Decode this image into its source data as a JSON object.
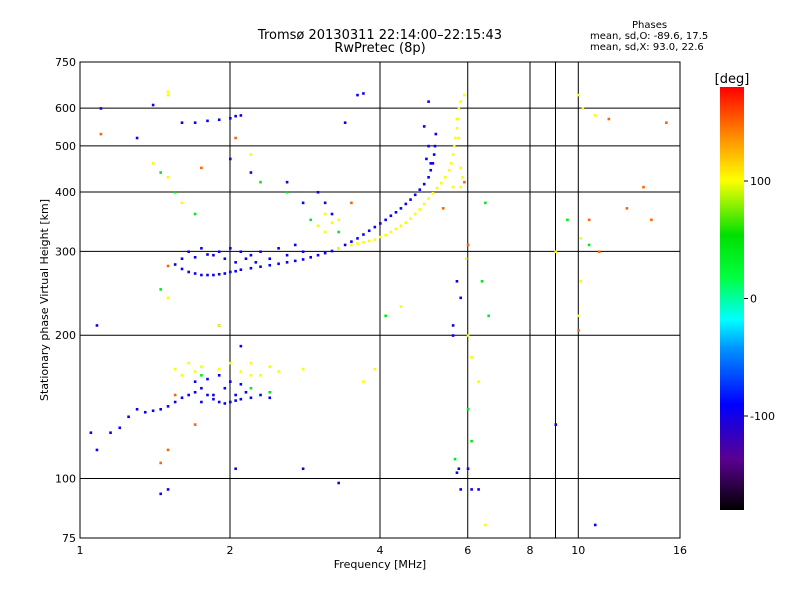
{
  "title": {
    "line1": "Tromsø 20130311 22:14:00–22:15:43",
    "line2": "RwPretec (8p)"
  },
  "phases": {
    "heading": "Phases",
    "o_stats": "mean, sd,O: -89.6, 17.5",
    "x_stats": "mean, sd,X:  93.0, 22.6"
  },
  "colorbar": {
    "label": "[deg]",
    "ticks": [
      {
        "value": 100,
        "label": "100"
      },
      {
        "value": 0,
        "label": "0"
      },
      {
        "value": -100,
        "label": "-100"
      }
    ],
    "range": [
      -180,
      180
    ]
  },
  "chart_data": {
    "type": "scatter",
    "title": "Tromsø 20130311 22:14:00–22:15:43",
    "subtitle": "RwPretec (8p)",
    "xlabel": "Frequency [MHz]",
    "ylabel": "Stationary phase Virtual Height [km]",
    "xscale": "log",
    "yscale": "log",
    "xlim": [
      1,
      16
    ],
    "ylim": [
      75,
      750
    ],
    "xticks": [
      1,
      2,
      4,
      6,
      8,
      10,
      16
    ],
    "xtick_labels": [
      "1",
      "2",
      "4",
      "6",
      "8",
      "10",
      "16"
    ],
    "yticks": [
      75,
      100,
      200,
      300,
      400,
      500,
      600,
      750
    ],
    "ytick_labels": [
      "75",
      "100",
      "200",
      "300",
      "400",
      "500",
      "600",
      "750"
    ],
    "grid": true,
    "series": [
      {
        "points": [
          [
            1.55,
            282
          ],
          [
            1.6,
            276
          ],
          [
            1.65,
            272
          ],
          [
            1.7,
            270
          ],
          [
            1.75,
            268
          ],
          [
            1.8,
            268
          ],
          [
            1.85,
            268
          ],
          [
            1.9,
            269
          ],
          [
            1.95,
            270
          ],
          [
            2.0,
            272
          ],
          [
            2.05,
            273
          ],
          [
            2.1,
            275
          ],
          [
            2.2,
            277
          ],
          [
            2.3,
            279
          ],
          [
            2.4,
            281
          ],
          [
            2.5,
            283
          ],
          [
            2.6,
            285
          ],
          [
            2.7,
            287
          ],
          [
            2.8,
            289
          ],
          [
            2.9,
            292
          ],
          [
            3.0,
            295
          ],
          [
            3.1,
            298
          ],
          [
            3.2,
            301
          ],
          [
            3.3,
            305
          ],
          [
            3.4,
            310
          ],
          [
            3.5,
            315
          ],
          [
            3.6,
            320
          ],
          [
            3.7,
            326
          ],
          [
            3.8,
            332
          ],
          [
            3.9,
            338
          ],
          [
            4.0,
            344
          ],
          [
            4.1,
            350
          ],
          [
            4.2,
            357
          ],
          [
            4.3,
            363
          ],
          [
            4.4,
            370
          ],
          [
            4.5,
            378
          ],
          [
            4.6,
            386
          ],
          [
            4.7,
            395
          ],
          [
            4.8,
            405
          ],
          [
            4.9,
            416
          ],
          [
            5.0,
            430
          ],
          [
            5.05,
            445
          ],
          [
            5.1,
            460
          ],
          [
            5.13,
            480
          ],
          [
            5.15,
            500
          ],
          [
            5.17,
            530
          ],
          [
            1.6,
            290
          ],
          [
            1.7,
            292
          ],
          [
            1.8,
            296
          ],
          [
            1.9,
            300
          ],
          [
            2.0,
            305
          ],
          [
            2.1,
            300
          ],
          [
            2.2,
            295
          ],
          [
            2.3,
            300
          ],
          [
            2.5,
            305
          ],
          [
            2.7,
            310
          ],
          [
            1.65,
            300
          ],
          [
            1.75,
            305
          ],
          [
            1.85,
            295
          ],
          [
            1.95,
            290
          ],
          [
            2.05,
            285
          ],
          [
            2.15,
            290
          ],
          [
            2.25,
            285
          ],
          [
            2.4,
            290
          ],
          [
            2.6,
            295
          ],
          [
            2.8,
            300
          ],
          [
            1.3,
            140
          ],
          [
            1.35,
            138
          ],
          [
            1.4,
            139
          ],
          [
            1.45,
            140
          ],
          [
            1.5,
            142
          ],
          [
            1.55,
            145
          ],
          [
            1.6,
            148
          ],
          [
            1.65,
            150
          ],
          [
            1.7,
            152
          ],
          [
            1.75,
            155
          ],
          [
            1.8,
            150
          ],
          [
            1.85,
            147
          ],
          [
            1.9,
            145
          ],
          [
            1.95,
            144
          ],
          [
            2.0,
            145
          ],
          [
            2.05,
            146
          ],
          [
            2.1,
            147
          ],
          [
            2.2,
            148
          ],
          [
            2.3,
            150
          ],
          [
            2.4,
            148
          ],
          [
            1.7,
            160
          ],
          [
            1.8,
            162
          ],
          [
            1.9,
            165
          ],
          [
            2.0,
            160
          ],
          [
            2.1,
            158
          ],
          [
            1.75,
            145
          ],
          [
            1.85,
            150
          ],
          [
            1.95,
            155
          ],
          [
            2.05,
            150
          ],
          [
            2.15,
            152
          ],
          [
            1.15,
            125
          ],
          [
            1.2,
            128
          ],
          [
            1.25,
            135
          ],
          [
            1.7,
            560
          ],
          [
            1.8,
            565
          ],
          [
            1.9,
            568
          ],
          [
            2.0,
            572
          ],
          [
            2.05,
            578
          ],
          [
            2.1,
            580
          ],
          [
            1.6,
            560
          ],
          [
            5.0,
            620
          ],
          [
            4.9,
            550
          ],
          [
            5.0,
            500
          ],
          [
            4.95,
            470
          ],
          [
            5.05,
            460
          ],
          [
            5.7,
            103
          ],
          [
            5.75,
            105
          ],
          [
            5.8,
            95
          ],
          [
            6.1,
            95
          ],
          [
            6.3,
            95
          ],
          [
            2.0,
            470
          ],
          [
            2.2,
            440
          ],
          [
            2.6,
            420
          ],
          [
            2.8,
            380
          ],
          [
            3.0,
            400
          ],
          [
            3.1,
            380
          ],
          [
            3.2,
            360
          ],
          [
            3.4,
            560
          ],
          [
            3.6,
            640
          ],
          [
            3.7,
            645
          ],
          [
            1.05,
            125
          ],
          [
            1.08,
            115
          ],
          [
            1.08,
            210
          ],
          [
            1.1,
            600
          ],
          [
            1.4,
            610
          ],
          [
            1.3,
            520
          ],
          [
            1.9,
            210
          ],
          [
            2.1,
            190
          ],
          [
            5.7,
            260
          ],
          [
            5.8,
            240
          ],
          [
            9.0,
            130
          ],
          [
            10.8,
            80
          ],
          [
            1.5,
            95
          ],
          [
            1.45,
            93
          ],
          [
            2.05,
            105
          ],
          [
            2.8,
            105
          ],
          [
            3.3,
            98
          ],
          [
            5.6,
            210
          ],
          [
            5.6,
            200
          ],
          [
            6.0,
            105
          ]
        ],
        "phase_deg": -95
      },
      {
        "points": [
          [
            4.4,
            340
          ],
          [
            4.5,
            345
          ],
          [
            4.6,
            352
          ],
          [
            4.7,
            360
          ],
          [
            4.8,
            368
          ],
          [
            4.9,
            378
          ],
          [
            5.0,
            388
          ],
          [
            5.1,
            398
          ],
          [
            5.2,
            408
          ],
          [
            5.3,
            418
          ],
          [
            5.4,
            430
          ],
          [
            5.5,
            445
          ],
          [
            5.55,
            460
          ],
          [
            5.6,
            480
          ],
          [
            5.63,
            500
          ],
          [
            5.66,
            520
          ],
          [
            5.7,
            545
          ],
          [
            5.72,
            570
          ],
          [
            5.75,
            600
          ],
          [
            5.6,
            410
          ],
          [
            4.3,
            335
          ],
          [
            4.2,
            330
          ],
          [
            4.1,
            325
          ],
          [
            4.0,
            322
          ],
          [
            3.9,
            318
          ],
          [
            3.8,
            316
          ],
          [
            3.7,
            314
          ],
          [
            3.6,
            312
          ],
          [
            3.5,
            310
          ],
          [
            3.3,
            305
          ],
          [
            1.65,
            175
          ],
          [
            1.75,
            172
          ],
          [
            1.9,
            170
          ],
          [
            2.1,
            168
          ],
          [
            2.2,
            165
          ],
          [
            1.6,
            165
          ],
          [
            1.7,
            168
          ],
          [
            2.3,
            165
          ],
          [
            2.5,
            168
          ],
          [
            2.8,
            170
          ],
          [
            1.9,
            170
          ],
          [
            2.0,
            175
          ],
          [
            2.2,
            175
          ],
          [
            2.4,
            172
          ],
          [
            1.55,
            170
          ],
          [
            3.1,
            330
          ],
          [
            3.2,
            345
          ],
          [
            3.3,
            350
          ],
          [
            3.1,
            360
          ],
          [
            3.0,
            340
          ],
          [
            5.8,
            620
          ],
          [
            5.9,
            640
          ],
          [
            5.7,
            570
          ],
          [
            5.75,
            520
          ],
          [
            5.8,
            450
          ],
          [
            5.85,
            430
          ],
          [
            5.8,
            410
          ],
          [
            10.0,
            640
          ],
          [
            10.2,
            600
          ],
          [
            10.8,
            580
          ],
          [
            5.95,
            290
          ],
          [
            6.0,
            200
          ],
          [
            6.1,
            180
          ],
          [
            6.3,
            160
          ],
          [
            6.5,
            80
          ],
          [
            10.0,
            220
          ],
          [
            10.1,
            260
          ],
          [
            10.1,
            320
          ],
          [
            9.0,
            300
          ],
          [
            2.2,
            480
          ],
          [
            1.5,
            640
          ],
          [
            1.5,
            650
          ],
          [
            1.4,
            460
          ],
          [
            1.5,
            430
          ],
          [
            1.6,
            380
          ],
          [
            1.5,
            240
          ],
          [
            1.9,
            210
          ],
          [
            3.7,
            160
          ],
          [
            3.9,
            170
          ],
          [
            4.4,
            230
          ]
        ],
        "phase_deg": 100
      },
      {
        "points": [
          [
            2.3,
            420
          ],
          [
            2.6,
            400
          ],
          [
            2.9,
            350
          ],
          [
            3.3,
            330
          ],
          [
            1.45,
            440
          ],
          [
            1.55,
            400
          ],
          [
            1.7,
            360
          ],
          [
            6.5,
            380
          ],
          [
            6.4,
            260
          ],
          [
            6.6,
            220
          ],
          [
            1.75,
            165
          ],
          [
            2.2,
            155
          ],
          [
            2.4,
            152
          ],
          [
            9.5,
            350
          ],
          [
            10.5,
            310
          ],
          [
            1.45,
            250
          ],
          [
            4.1,
            220
          ],
          [
            5.65,
            110
          ],
          [
            6.0,
            140
          ],
          [
            6.1,
            120
          ]
        ],
        "phase_deg": 40
      },
      {
        "points": [
          [
            1.1,
            530
          ],
          [
            1.5,
            280
          ],
          [
            1.55,
            150
          ],
          [
            1.7,
            130
          ],
          [
            1.5,
            115
          ],
          [
            1.45,
            108
          ],
          [
            11.5,
            570
          ],
          [
            13.5,
            410
          ],
          [
            15.0,
            560
          ],
          [
            14.0,
            350
          ],
          [
            12.5,
            370
          ],
          [
            10.5,
            350
          ],
          [
            11.0,
            300
          ],
          [
            1.75,
            450
          ],
          [
            2.05,
            520
          ],
          [
            3.5,
            380
          ],
          [
            5.35,
            370
          ],
          [
            5.9,
            420
          ],
          [
            6.0,
            310
          ],
          [
            10.0,
            205
          ]
        ],
        "phase_deg": 150
      }
    ]
  }
}
